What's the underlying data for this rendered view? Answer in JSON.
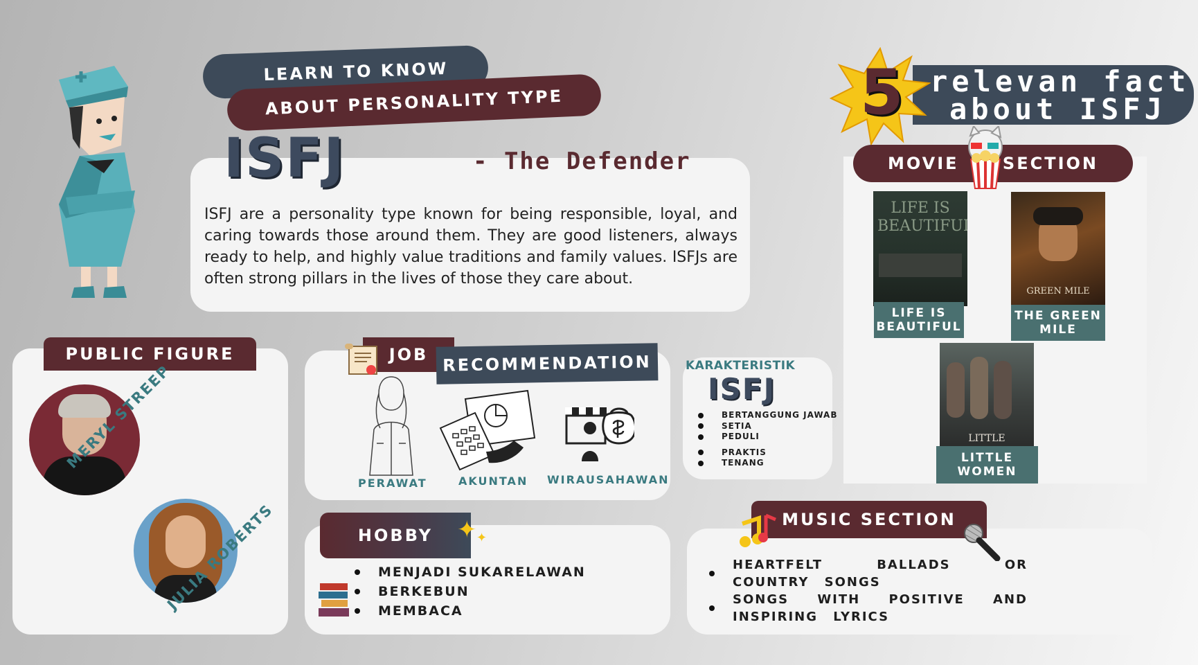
{
  "header": {
    "learn_line": "LEARN TO KNOW",
    "about_line": "ABOUT PERSONALITY TYPE",
    "type_code": "ISFJ",
    "type_name": "- The Defender",
    "description": "ISFJ are a personality type known for being responsible, loyal, and caring towards those around them. They are good listeners, always ready to help, and highly value traditions and family values. ISFJs are often strong pillars in the lives of those they care about."
  },
  "facts_banner": {
    "number": "5",
    "line1": "relevan fact",
    "line2": "about ISFJ"
  },
  "movie_section": {
    "left_label": "MOVIE",
    "right_label": "SECTION",
    "movies": [
      {
        "title": "LIFE IS BEAUTIFUL",
        "poster_text": "LIFE IS BEAUTIFUL"
      },
      {
        "title": "THE GREEN MILE",
        "poster_text": "GREEN MILE"
      },
      {
        "title": "LITTLE WOMEN",
        "poster_text": "LITTLE"
      }
    ]
  },
  "public_figure": {
    "title": "PUBLIC FIGURE",
    "people": [
      "MERYL STREEP",
      "JULIA ROBERTS"
    ]
  },
  "job": {
    "title_left": "JOB",
    "title_right": "RECOMMENDATION",
    "items": [
      "PERAWAT",
      "AKUNTAN",
      "WIRAUSAHAWAN"
    ]
  },
  "karakteristik": {
    "title": "KARAKTERISTIK",
    "code": "ISFJ",
    "items": [
      "BERTANGGUNG JAWAB",
      "SETIA",
      "PEDULI",
      "PRAKTIS",
      "TENANG"
    ]
  },
  "hobby": {
    "title": "HOBBY",
    "items": [
      "MENJADI SUKARELAWAN",
      "BERKEBUN",
      "MEMBACA"
    ]
  },
  "music": {
    "title": "MUSIC SECTION",
    "items": [
      "HEARTFELT BALLADS OR COUNTRY SONGS",
      "SONGS WITH POSITIVE AND INSPIRING LYRICS"
    ]
  },
  "colors": {
    "maroon": "#5a2a30",
    "slate": "#3d4a59",
    "teal": "#4a7070",
    "card": "#f4f4f4"
  }
}
